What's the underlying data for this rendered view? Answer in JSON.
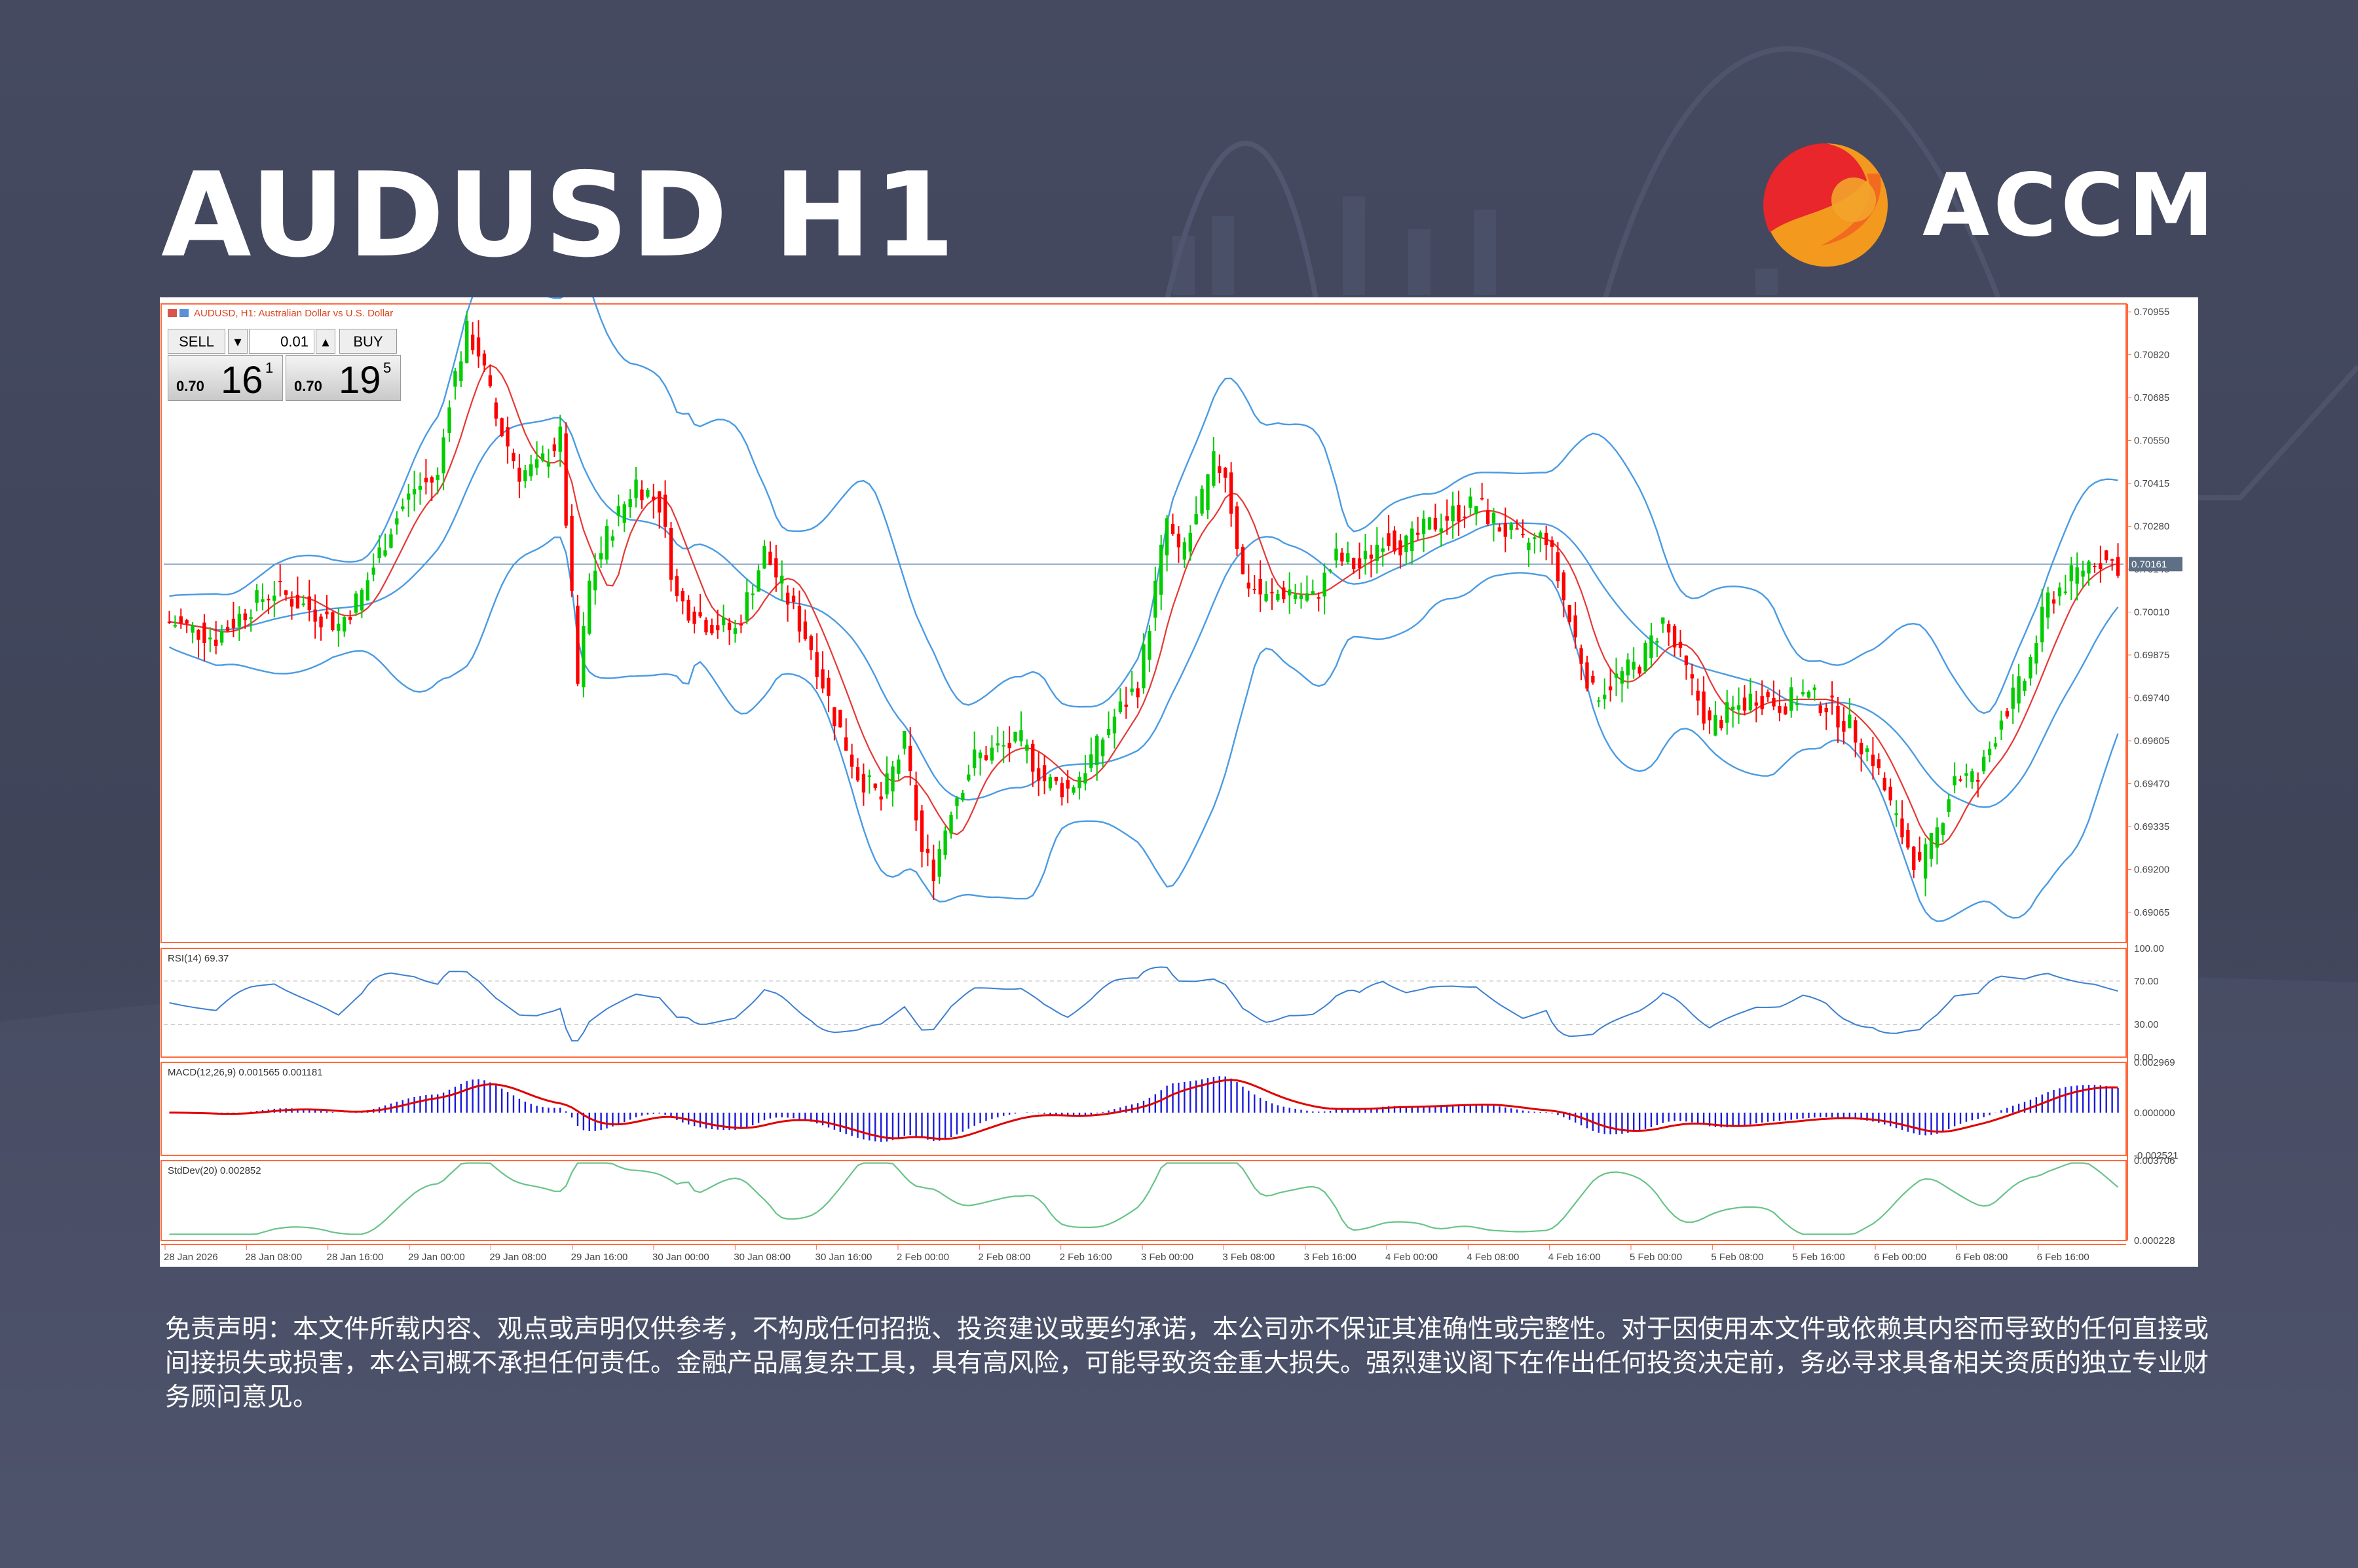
{
  "header": {
    "title": "AUDUSD H1",
    "brand_name": "ACCM"
  },
  "disclaimer": "免责声明：本文件所载内容、观点或声明仅供参考，不构成任何招揽、投资建议或要约承诺，本公司亦不保证其准确性或完整性。对于因使用本文件或依赖其内容而导致的任何直接或间接损失或损害，本公司概不承担任何责任。金融产品属复杂工具，具有高风险，可能导致资金重大损失。强烈建议阁下在作出任何投资决定前，务必寻求具备相关资质的独立专业财务顾问意见。",
  "colors": {
    "bull": "#00cc00",
    "bear": "#ff0000",
    "bands": "#4a9be3",
    "ma": "#e53935",
    "axis": "#ff6a3d",
    "rsi": "#3d7fd1",
    "macd_hist": "#1a1adb",
    "macd_signal": "#e00000",
    "stddev": "#69c38a",
    "price_line": "#5a7fa8"
  },
  "trade_panel": {
    "sell_label": "SELL",
    "buy_label": "BUY",
    "lot": "0.01",
    "bid_prefix": "0.70",
    "bid_big": "16",
    "bid_sup": "1",
    "ask_prefix": "0.70",
    "ask_big": "19",
    "ask_sup": "5"
  },
  "chart_data": {
    "type": "candlestick",
    "symbol_label": "AUDUSD, H1:  Australian Dollar vs U.S. Dollar",
    "current_price_label": "0.70161",
    "current_price": 0.70161,
    "price_ylim": [
      0.6897,
      0.7098
    ],
    "price_ticks": [
      "0.70955",
      "0.70820",
      "0.70685",
      "0.70550",
      "0.70415",
      "0.70280",
      "0.70145",
      "0.70010",
      "0.69875",
      "0.69740",
      "0.69605",
      "0.69470",
      "0.69335",
      "0.69200",
      "0.69065"
    ],
    "x_ticks": [
      "28 Jan 2026",
      "28 Jan 08:00",
      "28 Jan 16:00",
      "29 Jan 00:00",
      "29 Jan 08:00",
      "29 Jan 16:00",
      "30 Jan 00:00",
      "30 Jan 08:00",
      "30 Jan 16:00",
      "2 Feb 00:00",
      "2 Feb 08:00",
      "2 Feb 16:00",
      "3 Feb 00:00",
      "3 Feb 08:00",
      "3 Feb 16:00",
      "4 Feb 00:00",
      "4 Feb 08:00",
      "4 Feb 16:00",
      "5 Feb 00:00",
      "5 Feb 08:00",
      "5 Feb 16:00",
      "6 Feb 00:00",
      "6 Feb 08:00",
      "6 Feb 16:00"
    ],
    "close_keypoints": [
      [
        0,
        0.6998
      ],
      [
        8,
        0.6993
      ],
      [
        14,
        0.7003
      ],
      [
        18,
        0.7008
      ],
      [
        25,
        0.7001
      ],
      [
        29,
        0.6997
      ],
      [
        33,
        0.7007
      ],
      [
        38,
        0.7028
      ],
      [
        42,
        0.704
      ],
      [
        46,
        0.7043
      ],
      [
        48,
        0.7069
      ],
      [
        51,
        0.7089
      ],
      [
        53,
        0.7083
      ],
      [
        56,
        0.7062
      ],
      [
        60,
        0.7045
      ],
      [
        63,
        0.7046
      ],
      [
        67,
        0.7056
      ],
      [
        70,
        0.6978
      ],
      [
        72,
        0.701
      ],
      [
        75,
        0.7025
      ],
      [
        80,
        0.7042
      ],
      [
        84,
        0.7035
      ],
      [
        87,
        0.7005
      ],
      [
        92,
        0.6998
      ],
      [
        97,
        0.6995
      ],
      [
        102,
        0.702
      ],
      [
        106,
        0.7005
      ],
      [
        110,
        0.699
      ],
      [
        114,
        0.6968
      ],
      [
        118,
        0.695
      ],
      [
        122,
        0.6942
      ],
      [
        126,
        0.696
      ],
      [
        129,
        0.6925
      ],
      [
        131,
        0.692
      ],
      [
        134,
        0.694
      ],
      [
        138,
        0.6955
      ],
      [
        142,
        0.6958
      ],
      [
        146,
        0.696
      ],
      [
        150,
        0.6948
      ],
      [
        154,
        0.6945
      ],
      [
        158,
        0.6955
      ],
      [
        162,
        0.6968
      ],
      [
        166,
        0.6978
      ],
      [
        168,
        0.6998
      ],
      [
        171,
        0.703
      ],
      [
        173,
        0.7018
      ],
      [
        176,
        0.703
      ],
      [
        179,
        0.7048
      ],
      [
        181,
        0.7045
      ],
      [
        184,
        0.7012
      ],
      [
        188,
        0.7005
      ],
      [
        192,
        0.7008
      ],
      [
        196,
        0.7005
      ],
      [
        200,
        0.7018
      ],
      [
        204,
        0.7015
      ],
      [
        208,
        0.7025
      ],
      [
        212,
        0.7022
      ],
      [
        216,
        0.7028
      ],
      [
        220,
        0.7032
      ],
      [
        224,
        0.7035
      ],
      [
        228,
        0.7028
      ],
      [
        232,
        0.7022
      ],
      [
        236,
        0.7025
      ],
      [
        240,
        0.6998
      ],
      [
        244,
        0.6975
      ],
      [
        248,
        0.698
      ],
      [
        252,
        0.6985
      ],
      [
        256,
        0.6998
      ],
      [
        260,
        0.6982
      ],
      [
        264,
        0.6965
      ],
      [
        268,
        0.697
      ],
      [
        272,
        0.6975
      ],
      [
        276,
        0.6972
      ],
      [
        280,
        0.6975
      ],
      [
        284,
        0.6972
      ],
      [
        288,
        0.6965
      ],
      [
        292,
        0.6955
      ],
      [
        296,
        0.6935
      ],
      [
        300,
        0.692
      ],
      [
        303,
        0.6932
      ],
      [
        306,
        0.695
      ],
      [
        310,
        0.6948
      ],
      [
        314,
        0.6968
      ],
      [
        318,
        0.698
      ],
      [
        322,
        0.7005
      ],
      [
        326,
        0.7012
      ],
      [
        330,
        0.7018
      ],
      [
        334,
        0.7016
      ]
    ],
    "rsi": {
      "label": "RSI(14) 69.37",
      "levels": [
        "100.00",
        "70.00",
        "30.00",
        "0.00"
      ]
    },
    "macd": {
      "label": "MACD(12,26,9) 0.001565 0.001181",
      "ticks": [
        "0.002969",
        "0.000000",
        "-0.002521"
      ]
    },
    "stddev": {
      "label": "StdDev(20) 0.002852",
      "ticks": [
        "0.003706",
        "0.000228"
      ]
    }
  }
}
